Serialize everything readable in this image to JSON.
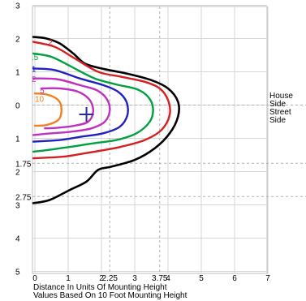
{
  "chart_data": {
    "type": "contour",
    "title": "",
    "x_axis": {
      "range": [
        0,
        7
      ],
      "tick_labels": [
        "0",
        "1",
        "2",
        "2.25",
        "3",
        "3.75",
        "4",
        "5",
        "6",
        "7"
      ],
      "tick_values": [
        0,
        1,
        2,
        2.25,
        3,
        3.75,
        4,
        5,
        6,
        7
      ],
      "label_line_1": "Distance In Units Of Mounting Height",
      "label_line_2": "Values Based On 10 Foot Mounting Height"
    },
    "y_axis": {
      "range": [
        -5,
        3
      ],
      "tick_labels": [
        "3",
        "2",
        "1",
        "0",
        "1",
        "1.75",
        "2",
        "2.75",
        "3",
        "4",
        "5"
      ],
      "tick_values": [
        3,
        2,
        1,
        0,
        -1,
        -1.75,
        -2,
        -2.75,
        -3,
        -4,
        -5
      ]
    },
    "side_labels": {
      "house_line_1": "House",
      "house_line_2": "Side",
      "street_line_1": "Street",
      "street_line_2": "Side"
    },
    "dashed_guides": {
      "x": [
        2.25,
        3.75
      ],
      "y": [
        -1.75,
        -2.75
      ]
    },
    "luminaire_position": [
      1.55,
      -0.28
    ],
    "grid": true,
    "contour_labels": [
      {
        "text": "2",
        "x": 0.4,
        "y": 1.8,
        "color": "#d42020"
      },
      {
        "text": ".5",
        "x": -0.1,
        "y": 1.35,
        "color": "#00a040"
      },
      {
        "text": "1",
        "x": -0.1,
        "y": 1.0,
        "color": "#2020c0"
      },
      {
        "text": "2",
        "x": -0.1,
        "y": 0.7,
        "color": "#c030c0"
      },
      {
        "text": "5",
        "x": 0.15,
        "y": 0.35,
        "color": "#c030c0"
      },
      {
        "text": "10",
        "x": 0.0,
        "y": 0.1,
        "color": "#f08020"
      }
    ],
    "series": [
      {
        "name": "",
        "color": "#000000",
        "points": [
          [
            -0.05,
            2.05
          ],
          [
            0.35,
            2.0
          ],
          [
            0.75,
            1.85
          ],
          [
            1.15,
            1.55
          ],
          [
            1.5,
            1.25
          ],
          [
            2.0,
            1.1
          ],
          [
            2.75,
            0.95
          ],
          [
            3.5,
            0.75
          ],
          [
            4.0,
            0.5
          ],
          [
            4.3,
            0.1
          ],
          [
            4.3,
            -0.35
          ],
          [
            4.05,
            -0.85
          ],
          [
            3.6,
            -1.3
          ],
          [
            3.0,
            -1.65
          ],
          [
            2.3,
            -1.85
          ],
          [
            1.9,
            -1.95
          ],
          [
            1.55,
            -2.3
          ],
          [
            1.05,
            -2.55
          ],
          [
            0.45,
            -2.85
          ],
          [
            -0.05,
            -2.95
          ]
        ]
      },
      {
        "name": "",
        "color": "#d42020",
        "points": [
          [
            -0.05,
            1.9
          ],
          [
            0.6,
            1.75
          ],
          [
            1.2,
            1.4
          ],
          [
            1.9,
            1.0
          ],
          [
            2.6,
            0.85
          ],
          [
            3.3,
            0.7
          ],
          [
            3.75,
            0.5
          ],
          [
            4.0,
            0.15
          ],
          [
            4.05,
            -0.3
          ],
          [
            3.8,
            -0.75
          ],
          [
            3.3,
            -1.05
          ],
          [
            2.6,
            -1.25
          ],
          [
            2.1,
            -1.35
          ],
          [
            1.5,
            -1.45
          ],
          [
            0.85,
            -1.55
          ],
          [
            -0.05,
            -1.6
          ]
        ]
      },
      {
        "name": "",
        "color": "#00a040",
        "points": [
          [
            -0.05,
            1.55
          ],
          [
            0.5,
            1.45
          ],
          [
            1.1,
            1.15
          ],
          [
            1.8,
            0.8
          ],
          [
            2.45,
            0.62
          ],
          [
            3.05,
            0.48
          ],
          [
            3.4,
            0.25
          ],
          [
            3.55,
            -0.1
          ],
          [
            3.45,
            -0.5
          ],
          [
            3.05,
            -0.85
          ],
          [
            2.45,
            -1.05
          ],
          [
            1.75,
            -1.15
          ],
          [
            1.1,
            -1.25
          ],
          [
            0.4,
            -1.35
          ],
          [
            -0.05,
            -1.4
          ]
        ]
      },
      {
        "name": "",
        "color": "#2020c0",
        "points": [
          [
            -0.05,
            1.1
          ],
          [
            0.6,
            1.05
          ],
          [
            1.35,
            0.8
          ],
          [
            2.05,
            0.6
          ],
          [
            2.5,
            0.4
          ],
          [
            2.75,
            0.1
          ],
          [
            2.78,
            -0.3
          ],
          [
            2.55,
            -0.65
          ],
          [
            2.05,
            -0.85
          ],
          [
            1.4,
            -0.95
          ],
          [
            0.75,
            -1.05
          ],
          [
            -0.05,
            -1.1
          ]
        ]
      },
      {
        "name": "",
        "color": "#c030c0",
        "points": [
          [
            -0.05,
            0.8
          ],
          [
            0.65,
            0.78
          ],
          [
            1.35,
            0.6
          ],
          [
            1.85,
            0.45
          ],
          [
            2.15,
            0.2
          ],
          [
            2.25,
            -0.15
          ],
          [
            2.1,
            -0.5
          ],
          [
            1.7,
            -0.7
          ],
          [
            1.1,
            -0.8
          ],
          [
            0.5,
            -0.85
          ],
          [
            -0.05,
            -0.9
          ]
        ]
      },
      {
        "name": "",
        "color": "#c030c0",
        "points": [
          [
            0.2,
            0.5
          ],
          [
            0.75,
            0.5
          ],
          [
            1.3,
            0.4
          ],
          [
            1.65,
            0.15
          ],
          [
            1.75,
            -0.2
          ],
          [
            1.6,
            -0.5
          ],
          [
            1.2,
            -0.62
          ],
          [
            0.7,
            -0.68
          ],
          [
            0.3,
            -0.7
          ]
        ]
      },
      {
        "name": "",
        "color": "#f08020",
        "points": [
          [
            0.0,
            0.35
          ],
          [
            0.35,
            0.32
          ],
          [
            0.7,
            0.15
          ],
          [
            0.8,
            -0.15
          ],
          [
            0.7,
            -0.45
          ],
          [
            0.35,
            -0.6
          ],
          [
            0.0,
            -0.62
          ]
        ]
      }
    ]
  }
}
